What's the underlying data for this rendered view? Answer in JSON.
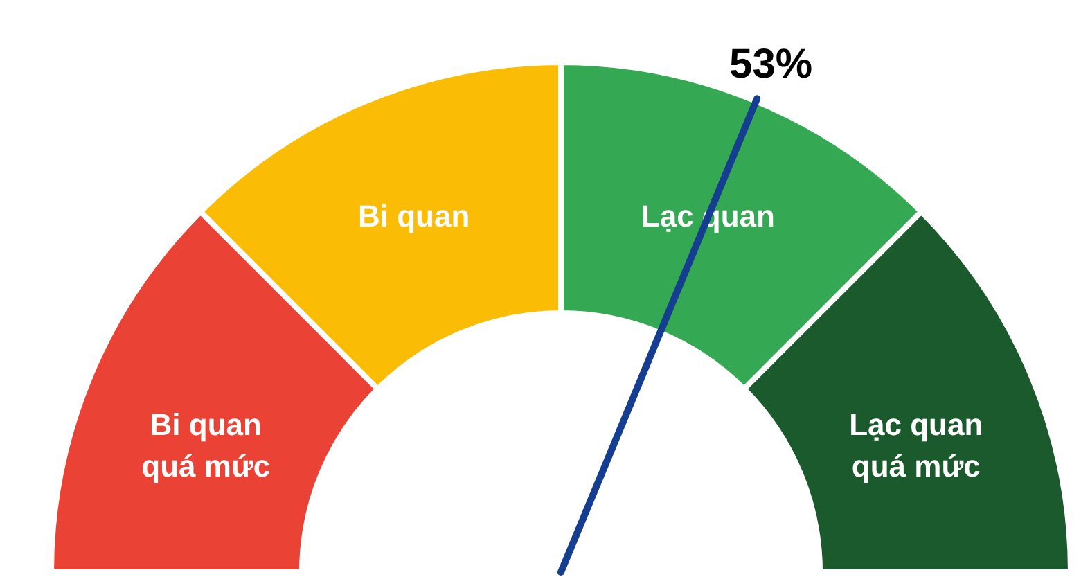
{
  "chart_data": {
    "type": "donut",
    "categories": [
      "Bi quan\nquá mức",
      "Bi quan",
      "Lạc quan",
      "Lạc quan\nquá mức"
    ],
    "values": [
      25,
      25,
      25,
      25
    ],
    "colors": [
      "#ea4335",
      "#fbbc05",
      "#34a853",
      "#1b5a2c"
    ],
    "needle": "Lạc quan",
    "annotations": [
      "53%"
    ]
  }
}
